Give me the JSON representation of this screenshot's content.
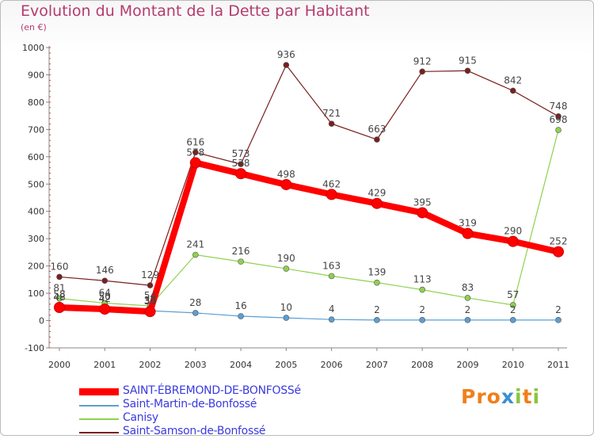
{
  "header": {
    "title": "Evolution du Montant de la Dette par Habitant",
    "subtitle": "(en €)"
  },
  "logo": {
    "text": "Proxiti",
    "colors": [
      "#f07f1a",
      "#3a8fd4",
      "#8bc53f"
    ]
  },
  "chart_data": {
    "type": "line",
    "title": "Evolution du Montant de la Dette par Habitant",
    "ylabel": "(en €)",
    "xlabel": "",
    "x": [
      "2000",
      "2001",
      "2002",
      "2003",
      "2004",
      "2005",
      "2006",
      "2007",
      "2008",
      "2009",
      "2010",
      "2011"
    ],
    "ylim": [
      -100,
      1000
    ],
    "yticks": [
      "-100",
      "0",
      "100",
      "200",
      "300",
      "400",
      "500",
      "600",
      "700",
      "800",
      "900",
      "1000"
    ],
    "grid": false,
    "legend_position": "bottom-left",
    "series": [
      {
        "name": "SAINT-ÉBREMOND-DE-BONFOSSé",
        "color": "#ff0000",
        "thick": true,
        "values": [
          48,
          42,
          33,
          578,
          538,
          498,
          462,
          429,
          395,
          319,
          290,
          252
        ],
        "labels": [
          "48",
          "42",
          "33",
          "578",
          "538",
          "498",
          "462",
          "429",
          "395",
          "319",
          "290",
          "252"
        ]
      },
      {
        "name": "Saint-Martin-de-Bonfossé",
        "color": "#5a9fd4",
        "thick": false,
        "values": [
          58,
          50,
          36,
          28,
          16,
          10,
          4,
          2,
          2,
          2,
          2,
          2
        ],
        "labels": [
          "58",
          "50",
          "36",
          "28",
          "16",
          "10",
          "4",
          "2",
          "2",
          "2",
          "2",
          "2"
        ]
      },
      {
        "name": "Canisy",
        "color": "#8fd14f",
        "thick": false,
        "values": [
          81,
          64,
          54,
          241,
          216,
          190,
          163,
          139,
          113,
          83,
          57,
          698
        ],
        "labels": [
          "81",
          "64",
          "54",
          "241",
          "216",
          "190",
          "163",
          "139",
          "113",
          "83",
          "57",
          "698"
        ]
      },
      {
        "name": "Saint-Samson-de-Bonfossé",
        "color": "#7a1f1f",
        "thick": false,
        "values": [
          160,
          146,
          129,
          616,
          573,
          936,
          721,
          663,
          912,
          915,
          842,
          748
        ],
        "labels": [
          "160",
          "146",
          "129",
          "616",
          "573",
          "936",
          "721",
          "663",
          "912",
          "915",
          "842",
          "748"
        ]
      }
    ]
  }
}
